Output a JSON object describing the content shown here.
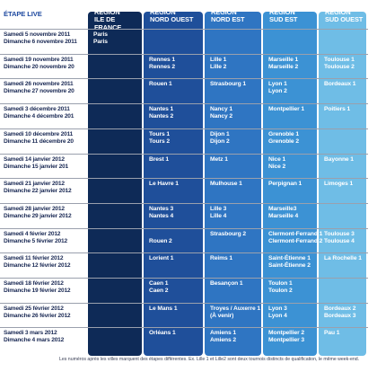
{
  "header": {
    "etape": "ÉTAPE LIVE",
    "regions": [
      {
        "line1": "RÉGION",
        "line2": "ILE DE FRANCE"
      },
      {
        "line1": "RÉGION",
        "line2": "NORD OUEST"
      },
      {
        "line1": "RÉGION",
        "line2": "NORD EST"
      },
      {
        "line1": "RÉGION",
        "line2": "SUD EST"
      },
      {
        "line1": "RÉGION",
        "line2": "SUD OUEST"
      }
    ]
  },
  "colors": {
    "ile_de_france": "#0e2a57",
    "nord_ouest": "#1f4f9a",
    "nord_est": "#2f75c2",
    "sud_est": "#3c92d4",
    "sud_ouest": "#6fbde6",
    "date_text": "#1b2a55",
    "etape_text": "#1f4aa0"
  },
  "rows": [
    {
      "d1": "Samedi 5 novembre 2011",
      "d2": "Dimanche 6 novembre 2011",
      "cells": [
        [
          "Paris",
          "Paris"
        ],
        [
          "",
          ""
        ],
        [
          "",
          ""
        ],
        [
          "",
          ""
        ],
        [
          "",
          ""
        ]
      ]
    },
    {
      "d1": "Samedi 19 novembre 2011",
      "d2": "Dimanche 20 novembre 20",
      "cells": [
        [
          "",
          ""
        ],
        [
          "Rennes 1",
          "Rennes 2"
        ],
        [
          "Lille 1",
          "Lille 2"
        ],
        [
          "Marseille 1",
          "Marseille 2"
        ],
        [
          "Toulouse 1",
          "Toulouse 2"
        ]
      ]
    },
    {
      "d1": "Samedi 26 novembre 2011",
      "d2": "Dimanche 27 novembre 20",
      "cells": [
        [
          "",
          ""
        ],
        [
          "Rouen 1",
          ""
        ],
        [
          "Strasbourg 1",
          ""
        ],
        [
          "Lyon 1",
          "Lyon 2"
        ],
        [
          "Bordeaux 1",
          ""
        ]
      ]
    },
    {
      "d1": "Samedi 3 décembre 2011",
      "d2": "Dimanche 4 décembre 201",
      "cells": [
        [
          "",
          ""
        ],
        [
          "Nantes 1",
          "Nantes 2"
        ],
        [
          "Nancy 1",
          "Nancy 2"
        ],
        [
          "Montpellier 1",
          ""
        ],
        [
          "Poitiers 1",
          ""
        ]
      ]
    },
    {
      "d1": "Samedi 10 décembre 2011",
      "d2": "Dimanche 11 décembre 20",
      "cells": [
        [
          "",
          ""
        ],
        [
          "Tours 1",
          "Tours 2"
        ],
        [
          "Dijon 1",
          "Dijon 2"
        ],
        [
          "Grenoble 1",
          "Grenoble 2"
        ],
        [
          "",
          ""
        ]
      ]
    },
    {
      "d1": "Samedi 14 janvier 2012",
      "d2": "Dimanche 15 janvier 201",
      "cells": [
        [
          "",
          ""
        ],
        [
          "Brest 1",
          ""
        ],
        [
          "Metz 1",
          ""
        ],
        [
          "Nice 1",
          "Nice 2"
        ],
        [
          "Bayonne 1",
          ""
        ]
      ]
    },
    {
      "d1": "Samedi 21 janvier 2012",
      "d2": "Dimanche 22 janvier 2012",
      "cells": [
        [
          "",
          ""
        ],
        [
          "Le Havre 1",
          ""
        ],
        [
          "Mulhouse 1",
          ""
        ],
        [
          "Perpignan 1",
          ""
        ],
        [
          "Limoges 1",
          ""
        ]
      ]
    },
    {
      "d1": "Samedi 28 janvier 2012",
      "d2": "Dimanche 29 janvier 2012",
      "cells": [
        [
          "",
          ""
        ],
        [
          "Nantes 3",
          "Nantes 4"
        ],
        [
          "Lille 3",
          "Lille 4"
        ],
        [
          "Marseille3",
          "Marseille 4"
        ],
        [
          "",
          ""
        ]
      ]
    },
    {
      "d1": "Samedi 4 février 2012",
      "d2": "Dimanche 5 février 2012",
      "cells": [
        [
          "",
          ""
        ],
        [
          "",
          "Rouen 2"
        ],
        [
          "Strasbourg 2",
          ""
        ],
        [
          "Clermont-Ferrand 1",
          "Clermont-Ferrand 2"
        ],
        [
          "Toulouse 3",
          "Toulouse 4"
        ]
      ]
    },
    {
      "d1": "Samedi 11 février 2012",
      "d2": "Dimanche 12 février 2012",
      "cells": [
        [
          "",
          ""
        ],
        [
          "Lorient 1",
          ""
        ],
        [
          "Reims 1",
          ""
        ],
        [
          "Saint-Étienne 1",
          "Saint-Étienne 2"
        ],
        [
          "La Rochelle 1",
          ""
        ]
      ]
    },
    {
      "d1": "Samedi 18 février 2012",
      "d2": "Dimanche 19 février 2012",
      "cells": [
        [
          "",
          ""
        ],
        [
          "Caen 1",
          "Caen 2"
        ],
        [
          "Besançon 1",
          ""
        ],
        [
          "Toulon 1",
          "Toulon 2"
        ],
        [
          "",
          ""
        ]
      ]
    },
    {
      "d1": "Samedi 25 février 2012",
      "d2": "Dimanche 26 février 2012",
      "cells": [
        [
          "",
          ""
        ],
        [
          "Le Mans 1",
          ""
        ],
        [
          "Troyes / Auxerre 1",
          "(À venir)"
        ],
        [
          "Lyon 3",
          "Lyon 4"
        ],
        [
          "Bordeaux 2",
          "Bordeaux 3"
        ]
      ]
    },
    {
      "d1": "Samedi 3 mars 2012",
      "d2": "Dimanche 4 mars 2012",
      "cells": [
        [
          "",
          ""
        ],
        [
          "Orléans 1",
          ""
        ],
        [
          "Amiens 1",
          "Amiens 2"
        ],
        [
          "Montpellier 2",
          "Montpellier 3"
        ],
        [
          "Pau 1",
          ""
        ]
      ]
    }
  ],
  "footnote": "Les numéros après les villes marquent des étapes différentes. Ex. Lille 1 et Lille2 sont deux tournois distincts de qualification, le même week-end."
}
